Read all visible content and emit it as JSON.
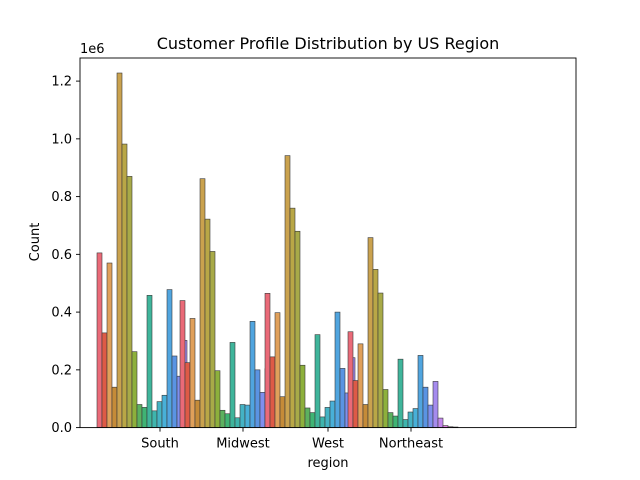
{
  "chart_data": {
    "type": "bar",
    "title": "Customer Profile Distribution by US Region",
    "xlabel": "region",
    "ylabel": "Count",
    "y_offset_label": "1e6",
    "ylim": [
      0,
      1280000
    ],
    "yticks": [
      0,
      200000,
      400000,
      600000,
      800000,
      1000000,
      1200000
    ],
    "ytick_labels": [
      "0.0",
      "0.2",
      "0.4",
      "0.6",
      "0.8",
      "1.0",
      "1.2"
    ],
    "grid": false,
    "legend": "none",
    "categories": [
      "South",
      "Midwest",
      "West",
      "Northeast"
    ],
    "groups": [
      {
        "category": "South",
        "values": [
          605000,
          328000,
          570000,
          140000,
          1228000,
          982000,
          870000,
          263000,
          80000,
          70000,
          458000,
          58000,
          90000,
          112000,
          478000,
          248000,
          178000,
          302000,
          58000,
          12000,
          5000,
          4000
        ]
      },
      {
        "category": "Midwest",
        "values": [
          440000,
          225000,
          378000,
          95000,
          862000,
          722000,
          610000,
          197000,
          60000,
          48000,
          295000,
          34000,
          80000,
          78000,
          368000,
          200000,
          122000,
          204000,
          40000,
          9000,
          4000,
          3000
        ]
      },
      {
        "category": "West",
        "values": [
          465000,
          245000,
          398000,
          107000,
          942000,
          760000,
          680000,
          216000,
          68000,
          52000,
          322000,
          37000,
          70000,
          92000,
          400000,
          205000,
          120000,
          242000,
          43000,
          10000,
          4000,
          3000
        ]
      },
      {
        "category": "Northeast",
        "values": [
          332000,
          163000,
          290000,
          80000,
          658000,
          548000,
          466000,
          132000,
          52000,
          40000,
          237000,
          28000,
          54000,
          66000,
          250000,
          140000,
          78000,
          160000,
          33000,
          7000,
          3000,
          2000
        ]
      }
    ],
    "bar_colors": [
      "#ea6a78",
      "#de5a46",
      "#e0a05a",
      "#c58b38",
      "#caa24e",
      "#b9a746",
      "#a8aa48",
      "#8db03c",
      "#5cb15f",
      "#3fb474",
      "#3fb59b",
      "#3eb5ad",
      "#44b3c4",
      "#48b0d8",
      "#50a5df",
      "#5a94e3",
      "#7f8fee",
      "#a58bee",
      "#c387ec",
      "#dc7ee0",
      "#e878cb",
      "#ea72b2"
    ]
  }
}
